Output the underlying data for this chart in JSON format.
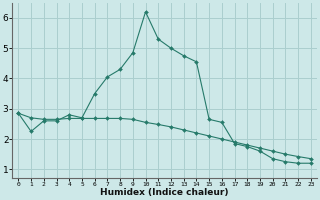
{
  "xlabel": "Humidex (Indice chaleur)",
  "background_color": "#cde8e8",
  "grid_color": "#aacece",
  "line_color": "#267a6a",
  "x_data": [
    0,
    1,
    2,
    3,
    4,
    5,
    6,
    7,
    8,
    9,
    10,
    11,
    12,
    13,
    14,
    15,
    16,
    17,
    18,
    19,
    20,
    21,
    22,
    23
  ],
  "y1_data": [
    2.85,
    2.25,
    2.6,
    2.6,
    2.8,
    2.7,
    3.5,
    4.05,
    4.3,
    4.85,
    6.2,
    5.3,
    5.0,
    4.75,
    4.55,
    2.65,
    2.55,
    1.85,
    1.75,
    1.6,
    1.35,
    1.25,
    1.2,
    1.2
  ],
  "y2_data": [
    2.85,
    2.7,
    2.65,
    2.65,
    2.68,
    2.68,
    2.68,
    2.68,
    2.68,
    2.65,
    2.55,
    2.48,
    2.4,
    2.3,
    2.2,
    2.1,
    2.0,
    1.9,
    1.8,
    1.7,
    1.6,
    1.5,
    1.42,
    1.35
  ],
  "ylim": [
    0.7,
    6.5
  ],
  "xlim": [
    -0.5,
    23.5
  ],
  "yticks": [
    1,
    2,
    3,
    4,
    5,
    6
  ],
  "xticks": [
    0,
    1,
    2,
    3,
    4,
    5,
    6,
    7,
    8,
    9,
    10,
    11,
    12,
    13,
    14,
    15,
    16,
    17,
    18,
    19,
    20,
    21,
    22,
    23
  ]
}
